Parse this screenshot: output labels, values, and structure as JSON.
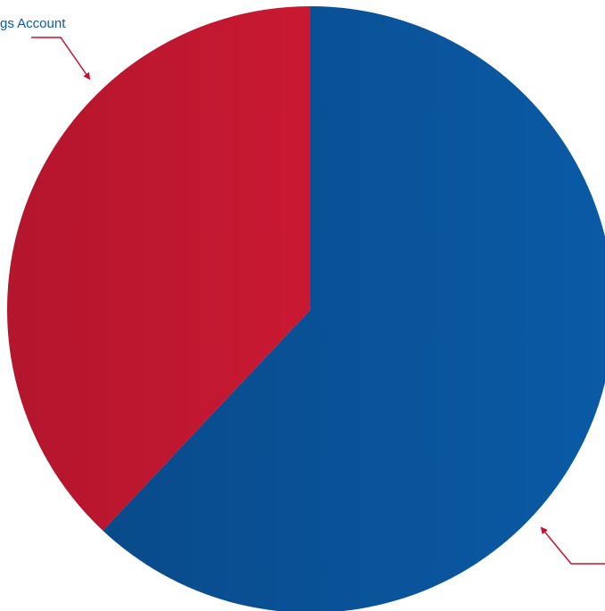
{
  "chart_data": {
    "type": "pie",
    "categories": [
      null,
      "gs Account"
    ],
    "values": [
      62,
      38
    ],
    "colors": [
      "#0a5aa6",
      "#e01b38"
    ]
  }
}
